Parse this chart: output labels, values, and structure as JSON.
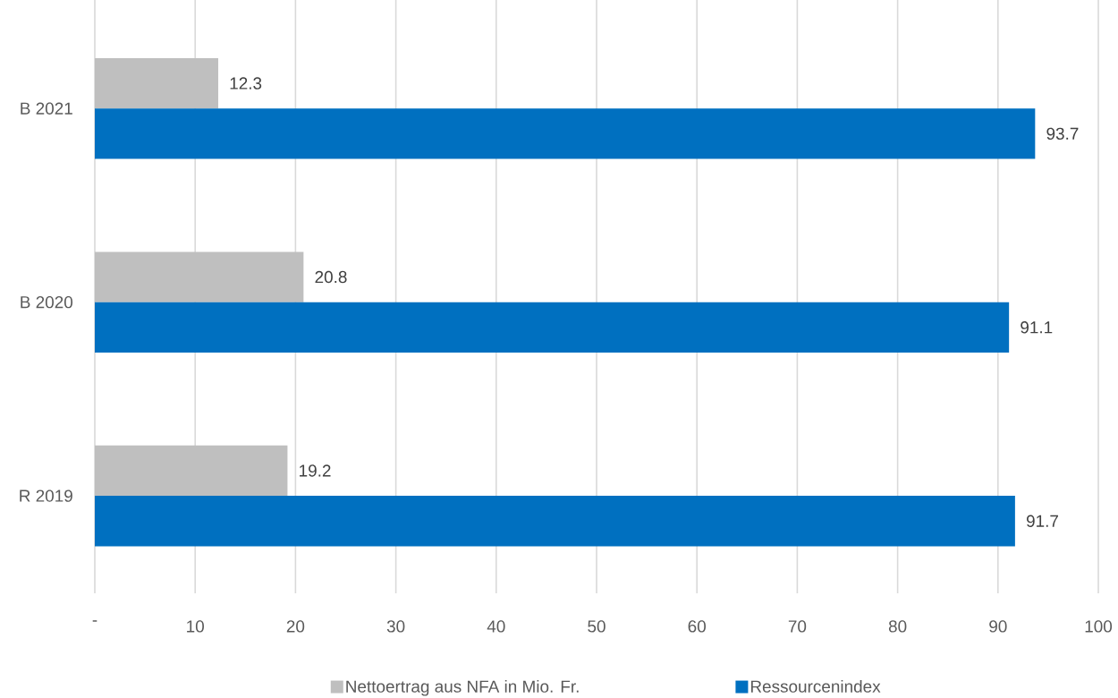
{
  "chart_data": {
    "type": "bar",
    "orientation": "horizontal",
    "categories": [
      "B 2021",
      "B 2020",
      "R 2019"
    ],
    "series": [
      {
        "name": "Nettoertrag aus NFA in Mio. Fr.",
        "color": "#bfbfbf",
        "values": [
          12.3,
          20.8,
          19.2
        ]
      },
      {
        "name": "Ressourcenindex",
        "color": "#0070c0",
        "values": [
          93.7,
          91.1,
          91.7
        ]
      }
    ],
    "xlim": [
      0,
      100
    ],
    "xticks": [
      {
        "value": 0,
        "label": "-"
      },
      10,
      20,
      30,
      40,
      50,
      60,
      70,
      80,
      90,
      100
    ],
    "grid": "x",
    "legend": "bottom",
    "data_labels": true
  }
}
